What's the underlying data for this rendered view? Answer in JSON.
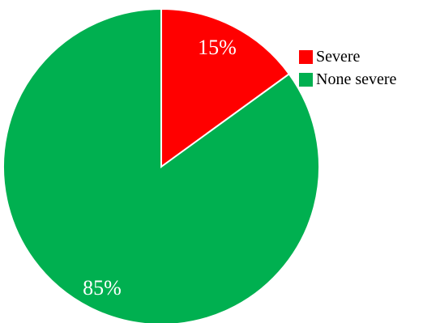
{
  "chart_data": {
    "type": "pie",
    "slices": [
      {
        "label": "Severe",
        "value": 15,
        "value_label": "15%",
        "color": "#ff0000"
      },
      {
        "label": "None severe",
        "value": 85,
        "value_label": "85%",
        "color": "#00b050"
      }
    ],
    "legend_placement": "right"
  }
}
